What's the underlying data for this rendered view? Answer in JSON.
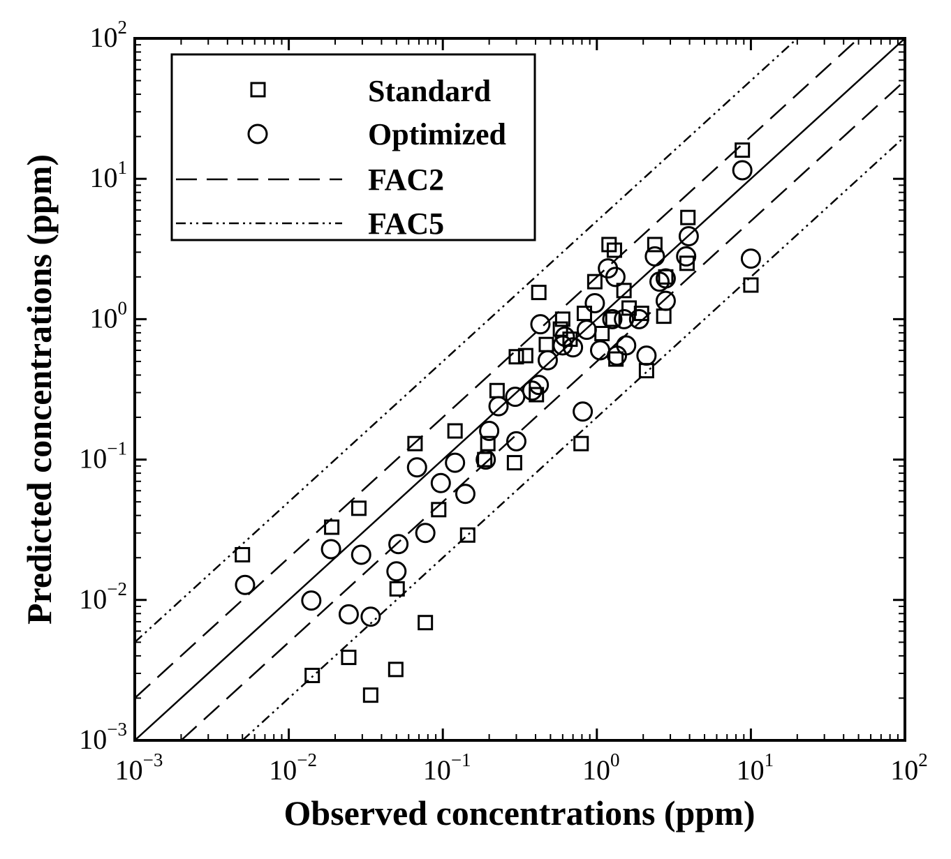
{
  "chart_data": {
    "type": "scatter",
    "title": "",
    "xlabel": "Observed concentrations (ppm)",
    "ylabel": "Predicted concentrations (ppm)",
    "xscale": "log",
    "yscale": "log",
    "xlim": [
      0.001,
      100
    ],
    "ylim": [
      0.001,
      100
    ],
    "grid": false,
    "legend_position": "top-left",
    "x_ticks": [
      {
        "base": "10",
        "exp": "−3",
        "value": 0.001
      },
      {
        "base": "10",
        "exp": "−2",
        "value": 0.01
      },
      {
        "base": "10",
        "exp": "−1",
        "value": 0.1
      },
      {
        "base": "10",
        "exp": "0",
        "value": 1
      },
      {
        "base": "10",
        "exp": "1",
        "value": 10
      },
      {
        "base": "10",
        "exp": "2",
        "value": 100
      }
    ],
    "y_ticks": [
      {
        "base": "10",
        "exp": "−3",
        "value": 0.001
      },
      {
        "base": "10",
        "exp": "−2",
        "value": 0.01
      },
      {
        "base": "10",
        "exp": "−1",
        "value": 0.1
      },
      {
        "base": "10",
        "exp": "0",
        "value": 1
      },
      {
        "base": "10",
        "exp": "1",
        "value": 10
      },
      {
        "base": "10",
        "exp": "2",
        "value": 100
      }
    ],
    "reference_lines": [
      {
        "name": "1:1",
        "factor": 1,
        "style": "solid"
      },
      {
        "name": "FAC2",
        "factor": 2,
        "style": "dashed"
      },
      {
        "name": "FAC2",
        "factor": 0.5,
        "style": "dashed"
      },
      {
        "name": "FAC5",
        "factor": 5,
        "style": "dash-dot-dot"
      },
      {
        "name": "FAC5",
        "factor": 0.2,
        "style": "dash-dot-dot"
      }
    ],
    "legend": [
      {
        "label": "Standard",
        "kind": "square-marker"
      },
      {
        "label": "Optimized",
        "kind": "circle-marker"
      },
      {
        "label": "FAC2",
        "kind": "dashed-line"
      },
      {
        "label": "FAC5",
        "kind": "dash-dot-dot-line"
      }
    ],
    "series": [
      {
        "name": "Standard",
        "marker": "square",
        "points": [
          [
            0.005,
            0.021
          ],
          [
            0.0142,
            0.0029
          ],
          [
            0.019,
            0.033
          ],
          [
            0.0245,
            0.0039
          ],
          [
            0.0285,
            0.045
          ],
          [
            0.034,
            0.0021
          ],
          [
            0.0495,
            0.0032
          ],
          [
            0.0505,
            0.012
          ],
          [
            0.077,
            0.0069
          ],
          [
            0.066,
            0.13
          ],
          [
            0.094,
            0.044
          ],
          [
            0.12,
            0.16
          ],
          [
            0.145,
            0.029
          ],
          [
            0.187,
            0.1
          ],
          [
            0.196,
            0.13
          ],
          [
            0.225,
            0.31
          ],
          [
            0.292,
            0.095
          ],
          [
            0.3,
            0.54
          ],
          [
            0.345,
            0.55
          ],
          [
            0.405,
            0.29
          ],
          [
            0.42,
            1.55
          ],
          [
            0.47,
            0.66
          ],
          [
            0.58,
            0.85
          ],
          [
            0.6,
            1.0
          ],
          [
            0.67,
            0.72
          ],
          [
            0.83,
            1.1
          ],
          [
            0.79,
            0.13
          ],
          [
            0.97,
            1.85
          ],
          [
            1.08,
            0.79
          ],
          [
            1.2,
            3.4
          ],
          [
            1.27,
            1.0
          ],
          [
            1.3,
            3.1
          ],
          [
            1.33,
            0.52
          ],
          [
            1.5,
            1.6
          ],
          [
            1.62,
            1.2
          ],
          [
            1.95,
            1.1
          ],
          [
            2.1,
            0.43
          ],
          [
            2.38,
            3.4
          ],
          [
            2.72,
            1.05
          ],
          [
            2.8,
            2.0
          ],
          [
            3.9,
            5.3
          ],
          [
            3.85,
            2.5
          ],
          [
            8.8,
            16.0
          ],
          [
            10.0,
            1.75
          ]
        ]
      },
      {
        "name": "Optimized",
        "marker": "circle",
        "points": [
          [
            0.0052,
            0.0128
          ],
          [
            0.014,
            0.0099
          ],
          [
            0.0188,
            0.023
          ],
          [
            0.0245,
            0.0079
          ],
          [
            0.0295,
            0.021
          ],
          [
            0.034,
            0.0076
          ],
          [
            0.05,
            0.016
          ],
          [
            0.0515,
            0.025
          ],
          [
            0.077,
            0.03
          ],
          [
            0.068,
            0.088
          ],
          [
            0.097,
            0.068
          ],
          [
            0.12,
            0.095
          ],
          [
            0.14,
            0.057
          ],
          [
            0.19,
            0.1
          ],
          [
            0.2,
            0.16
          ],
          [
            0.23,
            0.24
          ],
          [
            0.295,
            0.28
          ],
          [
            0.3,
            0.135
          ],
          [
            0.38,
            0.31
          ],
          [
            0.42,
            0.34
          ],
          [
            0.43,
            0.92
          ],
          [
            0.48,
            0.51
          ],
          [
            0.6,
            0.65
          ],
          [
            0.62,
            0.75
          ],
          [
            0.7,
            0.63
          ],
          [
            0.81,
            0.22
          ],
          [
            0.86,
            0.84
          ],
          [
            0.97,
            1.3
          ],
          [
            1.05,
            0.6
          ],
          [
            1.18,
            2.3
          ],
          [
            1.26,
            1.0
          ],
          [
            1.32,
            2.0
          ],
          [
            1.35,
            0.55
          ],
          [
            1.5,
            1.0
          ],
          [
            1.55,
            0.65
          ],
          [
            1.88,
            1.0
          ],
          [
            2.1,
            0.55
          ],
          [
            2.38,
            2.8
          ],
          [
            2.55,
            1.85
          ],
          [
            2.8,
            1.35
          ],
          [
            2.8,
            1.95
          ],
          [
            3.8,
            2.8
          ],
          [
            3.95,
            3.9
          ],
          [
            8.8,
            11.5
          ],
          [
            10.0,
            2.7
          ]
        ]
      }
    ]
  }
}
